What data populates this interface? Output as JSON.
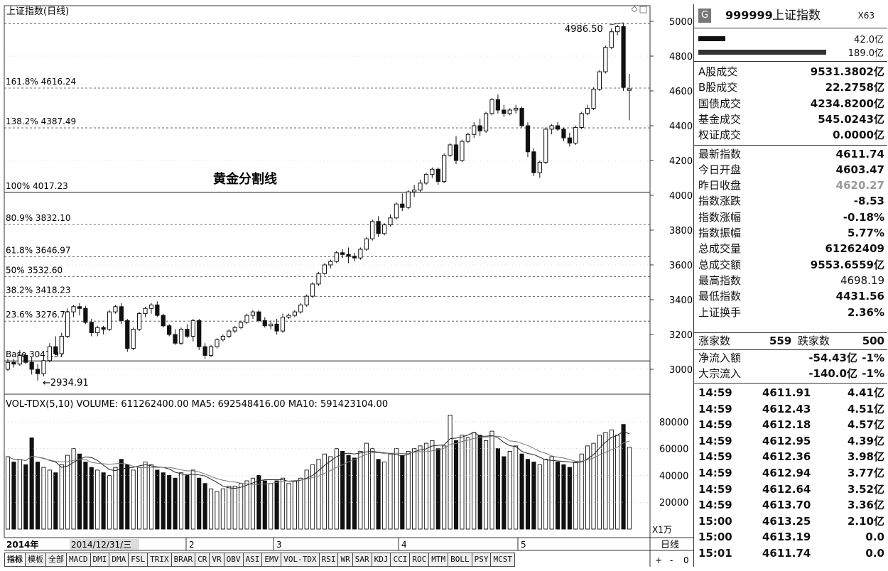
{
  "chart": {
    "title": "上证指数(日线)",
    "peak_label": "4986.50",
    "low_label": "←2934.91",
    "annotation": "黄金分割线",
    "fib_levels": [
      {
        "label": "161.8% 4616.24",
        "value": 4616.24
      },
      {
        "label": "138.2% 4387.49",
        "value": 4387.49
      },
      {
        "label": "100% 4017.23",
        "value": 4017.23
      },
      {
        "label": "80.9% 3832.10",
        "value": 3832.1
      },
      {
        "label": "61.8% 3646.97",
        "value": 3646.97
      },
      {
        "label": "50% 3532.60",
        "value": 3532.6
      },
      {
        "label": "38.2% 3418.23",
        "value": 3418.23
      },
      {
        "label": "23.6% 3276.71",
        "value": 3276.71
      },
      {
        "label": "Base 3047.97",
        "value": 3047.97
      }
    ],
    "price_axis": [
      "5000",
      "4800",
      "4600",
      "4400",
      "4200",
      "4000",
      "3800",
      "3600",
      "3400",
      "3200",
      "3000"
    ],
    "volume_header": "VOL-TDX(5,10)  VOLUME: 611262400.00  MA5: 692548416.00  MA10: 591423104.00",
    "volume_axis": [
      "80000",
      "60000",
      "40000",
      "20000"
    ],
    "volume_unit": "X1万",
    "date_labels": [
      "2014年",
      "2014/12/31/三",
      "2",
      "3",
      "4",
      "5"
    ],
    "period": "日线",
    "zoom_controls": [
      "+",
      "-",
      "0"
    ]
  },
  "chart_data": {
    "type": "candlestick",
    "title": "上证指数(日线)",
    "ylim": [
      2934.91,
      4986.5
    ],
    "high": 4986.5,
    "low": 2934.91,
    "ohlc": [
      [
        3000,
        3060,
        2990,
        3040
      ],
      [
        3040,
        3060,
        3010,
        3030
      ],
      [
        3030,
        3110,
        3020,
        3080
      ],
      [
        3080,
        3090,
        3030,
        3040
      ],
      [
        3040,
        3070,
        2970,
        3000
      ],
      [
        3000,
        3030,
        2935,
        2975
      ],
      [
        2975,
        3070,
        2960,
        3050
      ],
      [
        3050,
        3150,
        3040,
        3130
      ],
      [
        3130,
        3190,
        3080,
        3090
      ],
      [
        3090,
        3210,
        3080,
        3190
      ],
      [
        3190,
        3350,
        3180,
        3330
      ],
      [
        3330,
        3370,
        3300,
        3360
      ],
      [
        3360,
        3380,
        3310,
        3350
      ],
      [
        3350,
        3365,
        3260,
        3270
      ],
      [
        3270,
        3290,
        3190,
        3210
      ],
      [
        3210,
        3250,
        3190,
        3240
      ],
      [
        3240,
        3250,
        3200,
        3230
      ],
      [
        3230,
        3340,
        3220,
        3330
      ],
      [
        3330,
        3370,
        3320,
        3360
      ],
      [
        3360,
        3380,
        3260,
        3280
      ],
      [
        3280,
        3290,
        3100,
        3120
      ],
      [
        3120,
        3240,
        3110,
        3230
      ],
      [
        3230,
        3330,
        3220,
        3320
      ],
      [
        3320,
        3360,
        3300,
        3350
      ],
      [
        3350,
        3380,
        3320,
        3370
      ],
      [
        3370,
        3390,
        3300,
        3310
      ],
      [
        3310,
        3320,
        3240,
        3250
      ],
      [
        3250,
        3260,
        3190,
        3200
      ],
      [
        3200,
        3230,
        3140,
        3150
      ],
      [
        3150,
        3240,
        3140,
        3230
      ],
      [
        3230,
        3260,
        3180,
        3190
      ],
      [
        3190,
        3290,
        3160,
        3280
      ],
      [
        3280,
        3290,
        3110,
        3130
      ],
      [
        3130,
        3150,
        3060,
        3080
      ],
      [
        3080,
        3140,
        3070,
        3130
      ],
      [
        3130,
        3180,
        3120,
        3170
      ],
      [
        3170,
        3200,
        3160,
        3190
      ],
      [
        3190,
        3230,
        3180,
        3220
      ],
      [
        3220,
        3250,
        3210,
        3240
      ],
      [
        3240,
        3280,
        3230,
        3270
      ],
      [
        3270,
        3320,
        3260,
        3310
      ],
      [
        3310,
        3340,
        3290,
        3330
      ],
      [
        3330,
        3340,
        3270,
        3280
      ],
      [
        3280,
        3300,
        3240,
        3250
      ],
      [
        3250,
        3280,
        3230,
        3260
      ],
      [
        3260,
        3290,
        3200,
        3220
      ],
      [
        3220,
        3320,
        3210,
        3300
      ],
      [
        3300,
        3320,
        3290,
        3310
      ],
      [
        3310,
        3340,
        3300,
        3330
      ],
      [
        3330,
        3380,
        3320,
        3370
      ],
      [
        3370,
        3430,
        3360,
        3420
      ],
      [
        3420,
        3500,
        3410,
        3490
      ],
      [
        3490,
        3560,
        3480,
        3550
      ],
      [
        3550,
        3610,
        3540,
        3600
      ],
      [
        3600,
        3630,
        3580,
        3620
      ],
      [
        3620,
        3680,
        3610,
        3670
      ],
      [
        3670,
        3690,
        3640,
        3660
      ],
      [
        3660,
        3700,
        3610,
        3650
      ],
      [
        3650,
        3670,
        3620,
        3640
      ],
      [
        3640,
        3700,
        3630,
        3690
      ],
      [
        3690,
        3760,
        3680,
        3750
      ],
      [
        3750,
        3860,
        3740,
        3850
      ],
      [
        3850,
        3880,
        3760,
        3780
      ],
      [
        3780,
        3840,
        3770,
        3830
      ],
      [
        3830,
        3890,
        3820,
        3870
      ],
      [
        3870,
        3960,
        3860,
        3950
      ],
      [
        3950,
        4010,
        3910,
        3930
      ],
      [
        3930,
        4030,
        3920,
        4020
      ],
      [
        4020,
        4060,
        3990,
        4030
      ],
      [
        4030,
        4090,
        4020,
        4070
      ],
      [
        4070,
        4130,
        4060,
        4120
      ],
      [
        4120,
        4160,
        4100,
        4150
      ],
      [
        4150,
        4160,
        4060,
        4080
      ],
      [
        4080,
        4240,
        4070,
        4230
      ],
      [
        4230,
        4300,
        4220,
        4290
      ],
      [
        4290,
        4340,
        4180,
        4200
      ],
      [
        4200,
        4320,
        4190,
        4310
      ],
      [
        4310,
        4360,
        4300,
        4350
      ],
      [
        4350,
        4420,
        4330,
        4400
      ],
      [
        4400,
        4440,
        4340,
        4370
      ],
      [
        4370,
        4480,
        4360,
        4470
      ],
      [
        4470,
        4560,
        4460,
        4550
      ],
      [
        4550,
        4580,
        4470,
        4490
      ],
      [
        4490,
        4520,
        4450,
        4470
      ],
      [
        4470,
        4500,
        4460,
        4490
      ],
      [
        4490,
        4520,
        4470,
        4500
      ],
      [
        4500,
        4510,
        4390,
        4400
      ],
      [
        4400,
        4420,
        4220,
        4250
      ],
      [
        4250,
        4270,
        4110,
        4130
      ],
      [
        4130,
        4200,
        4100,
        4190
      ],
      [
        4190,
        4390,
        4180,
        4380
      ],
      [
        4380,
        4410,
        4350,
        4400
      ],
      [
        4400,
        4420,
        4370,
        4380
      ],
      [
        4380,
        4390,
        4310,
        4330
      ],
      [
        4330,
        4360,
        4280,
        4300
      ],
      [
        4300,
        4400,
        4290,
        4390
      ],
      [
        4390,
        4480,
        4380,
        4470
      ],
      [
        4470,
        4520,
        4460,
        4500
      ],
      [
        4500,
        4620,
        4490,
        4610
      ],
      [
        4610,
        4720,
        4600,
        4710
      ],
      [
        4710,
        4860,
        4700,
        4850
      ],
      [
        4850,
        4960,
        4840,
        4940
      ],
      [
        4940,
        4980,
        4920,
        4970
      ],
      [
        4970,
        4986.5,
        4600,
        4620
      ],
      [
        4603.47,
        4698.19,
        4431.56,
        4611.74
      ]
    ],
    "volume": [
      54,
      50,
      52,
      48,
      68,
      50,
      46,
      44,
      42,
      48,
      55,
      60,
      56,
      50,
      46,
      44,
      42,
      40,
      46,
      52,
      48,
      44,
      46,
      50,
      48,
      44,
      42,
      40,
      38,
      42,
      40,
      44,
      38,
      34,
      30,
      28,
      30,
      32,
      32,
      34,
      36,
      38,
      40,
      36,
      34,
      36,
      38,
      34,
      36,
      38,
      44,
      48,
      52,
      56,
      54,
      60,
      58,
      55,
      53,
      58,
      64,
      60,
      52,
      50,
      56,
      60,
      55,
      58,
      60,
      62,
      64,
      66,
      60,
      62,
      85,
      66,
      70,
      68,
      72,
      70,
      66,
      73,
      60,
      54,
      58,
      62,
      56,
      52,
      50,
      48,
      52,
      54,
      50,
      48,
      46,
      50,
      56,
      62,
      64,
      70,
      72,
      74,
      70,
      78,
      61
    ],
    "ma5": 69254.8416,
    "ma10": 59142.3104,
    "volume_unit": "万"
  },
  "quote": {
    "badge": "G",
    "code": "999999",
    "name": "上证指数",
    "tag": "X63",
    "bar1_value": "42.0亿",
    "bar2_value": "189.0亿",
    "rows": [
      {
        "label": "A股成交",
        "value": "9531.3802亿"
      },
      {
        "label": "B股成交",
        "value": "22.2758亿"
      },
      {
        "label": "国债成交",
        "value": "4234.8200亿"
      },
      {
        "label": "基金成交",
        "value": "545.0243亿"
      },
      {
        "label": "权证成交",
        "value": "0.0000亿"
      },
      {
        "label": "最新指数",
        "value": "4611.74"
      },
      {
        "label": "今日开盘",
        "value": "4603.47"
      },
      {
        "label": "昨日收盘",
        "value": "4620.27"
      },
      {
        "label": "指数涨跌",
        "value": "-8.53"
      },
      {
        "label": "指数涨幅",
        "value": "-0.18%"
      },
      {
        "label": "指数振幅",
        "value": "5.77%"
      },
      {
        "label": "总成交量",
        "value": "61262409"
      },
      {
        "label": "总成交额",
        "value": "9553.6559亿"
      },
      {
        "label": "最高指数",
        "value": "4698.19"
      },
      {
        "label": "最低指数",
        "value": "4431.56"
      },
      {
        "label": "上证换手",
        "value": "2.36%"
      }
    ],
    "rise_label": "涨家数",
    "rise_value": "559",
    "fall_label": "跌家数",
    "fall_value": "500",
    "net_inflow_label": "净流入额",
    "net_inflow_value": "-54.43亿",
    "net_inflow_pct": "-1%",
    "block_inflow_label": "大宗流入",
    "block_inflow_value": "-140.0亿",
    "block_inflow_pct": "-1%",
    "ticks": [
      {
        "time": "14:59",
        "price": "4611.91",
        "vol": "4.41亿"
      },
      {
        "time": "14:59",
        "price": "4612.43",
        "vol": "4.51亿"
      },
      {
        "time": "14:59",
        "price": "4612.18",
        "vol": "4.57亿"
      },
      {
        "time": "14:59",
        "price": "4612.95",
        "vol": "4.39亿"
      },
      {
        "time": "14:59",
        "price": "4612.36",
        "vol": "3.98亿"
      },
      {
        "time": "14:59",
        "price": "4612.94",
        "vol": "3.77亿"
      },
      {
        "time": "14:59",
        "price": "4612.64",
        "vol": "3.52亿"
      },
      {
        "time": "14:59",
        "price": "4613.70",
        "vol": "3.36亿"
      },
      {
        "time": "15:00",
        "price": "4613.25",
        "vol": "2.10亿"
      },
      {
        "time": "15:00",
        "price": "4613.19",
        "vol": "0.0"
      },
      {
        "time": "15:01",
        "price": "4611.74",
        "vol": "0.0"
      }
    ]
  },
  "tabs": [
    "指标",
    "模板",
    "全部",
    "MACD",
    "DMI",
    "DMA",
    "FSL",
    "TRIX",
    "BRAR",
    "CR",
    "VR",
    "OBV",
    "ASI",
    "EMV",
    "VOL-TDX",
    "RSI",
    "WR",
    "SAR",
    "KDJ",
    "CCI",
    "ROC",
    "MTM",
    "BOLL",
    "PSY",
    "MCST"
  ],
  "colors": {
    "bull": "#ffffff",
    "bear": "#111111",
    "grey_value": "#999999"
  }
}
